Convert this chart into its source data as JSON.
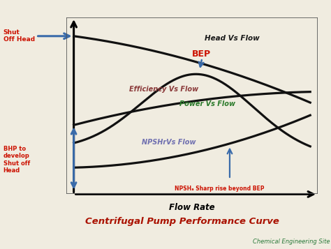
{
  "title": "Centrifugal Pump Performance Curve",
  "subtitle": "Chemical Engineering Site",
  "xlabel": "Flow Rate",
  "bg_color": "#f0ece0",
  "curve_color": "#111111",
  "label_head": "Head Vs Flow",
  "label_efficiency": "Efficiency Vs Flow",
  "label_power": "Power Vs Flow",
  "label_npsh": "NPSHrVs Flow",
  "label_efficiency_color": "#8b3a3a",
  "label_power_color": "#2a7a2a",
  "label_npsh_color": "#7070b0",
  "label_head_color": "#1a1a1a",
  "bep_label": "BEP",
  "bep_color": "#cc1100",
  "shut_off_label": "Shut\nOff Head",
  "shut_off_color": "#cc1100",
  "bhp_label": "BHP to\ndevelop\nShut off\nHead",
  "bhp_color": "#cc1100",
  "npsh_rise_label": "NPSHₐ Sharp rise beyond BEP",
  "npsh_rise_color": "#cc1100",
  "arrow_color": "#3a6baa",
  "title_color": "#aa1100",
  "subtitle_color": "#2a7a3a",
  "border_color": "#555555"
}
